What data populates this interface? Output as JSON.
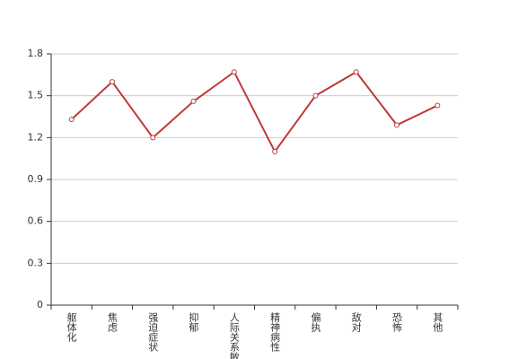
{
  "chart_data": {
    "type": "line",
    "categories": [
      "躯体化",
      "焦虑",
      "强迫症状",
      "抑郁",
      "人际关系敏感",
      "精神病性",
      "偏执",
      "敌对",
      "恐怖",
      "其他"
    ],
    "series": [
      {
        "color": "#c0393b",
        "values": [
          1.33,
          1.6,
          1.2,
          1.46,
          1.67,
          1.1,
          1.5,
          1.67,
          1.29,
          1.43
        ]
      }
    ],
    "ylim": [
      0,
      1.8
    ],
    "yticks": [
      {
        "value": 0,
        "label": "0"
      },
      {
        "value": 0.3,
        "label": "0.3"
      },
      {
        "value": 0.6,
        "label": "0.6"
      },
      {
        "value": 0.9,
        "label": "0.9"
      },
      {
        "value": 1.2,
        "label": "1.2"
      },
      {
        "value": 1.5,
        "label": "1.5"
      },
      {
        "value": 1.8,
        "label": "1.8"
      }
    ],
    "grid": true
  }
}
